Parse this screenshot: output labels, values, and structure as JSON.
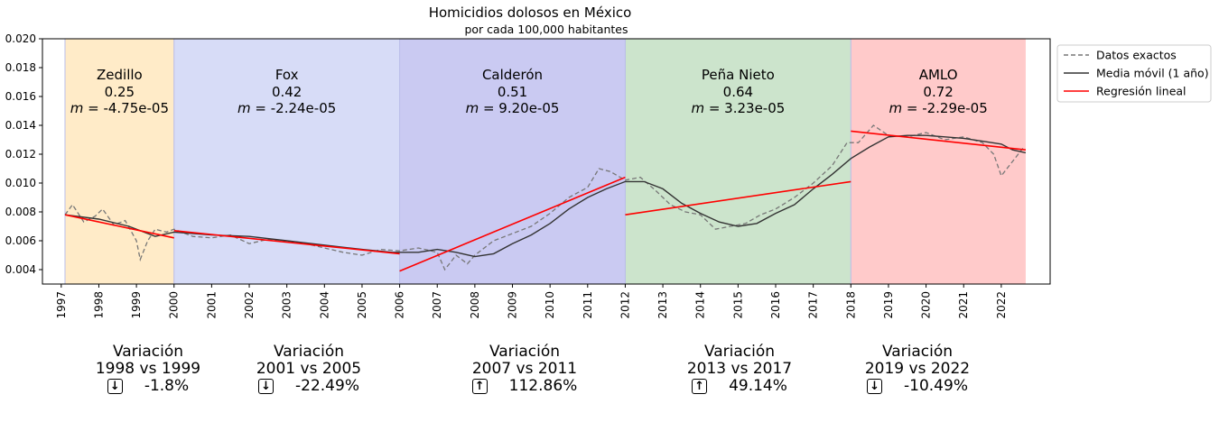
{
  "chart_data": {
    "type": "line",
    "title": "Homicidios dolosos en México",
    "subtitle": "por cada 100,000 habitantes",
    "xlim": [
      1996.5,
      2023.3
    ],
    "ylim": [
      0.003,
      0.02
    ],
    "yticks": [
      "0.020",
      "0.018",
      "0.016",
      "0.014",
      "0.012",
      "0.010",
      "0.008",
      "0.006",
      "0.004"
    ],
    "xticks": [
      "1997",
      "1998",
      "1999",
      "2000",
      "2001",
      "2002",
      "2003",
      "2004",
      "2005",
      "2006",
      "2007",
      "2008",
      "2009",
      "2010",
      "2011",
      "2012",
      "2013",
      "2014",
      "2015",
      "2016",
      "2017",
      "2018",
      "2019",
      "2020",
      "2021",
      "2022"
    ],
    "legend": {
      "position": "upper-right-outside",
      "entries": [
        "Datos exactos",
        "Media móvil (1 año)",
        "Regresión lineal"
      ]
    },
    "periods": [
      {
        "name": "Zedillo",
        "value": "0.25",
        "slope": "= -4.75e-05",
        "start": 1997.1,
        "end": 2000.0,
        "color": "#ffebc8"
      },
      {
        "name": "Fox",
        "value": "0.42",
        "slope": "= -2.24e-05",
        "start": 2000.0,
        "end": 2006.0,
        "color": "#d7dcf7"
      },
      {
        "name": "Calderón",
        "value": "0.51",
        "slope": "= 9.20e-05",
        "start": 2006.0,
        "end": 2012.0,
        "color": "#cacaf2"
      },
      {
        "name": "Peña Nieto",
        "value": "0.64",
        "slope": "= 3.23e-05",
        "start": 2012.0,
        "end": 2018.0,
        "color": "#cce4cc"
      },
      {
        "name": "AMLO",
        "value": "0.72",
        "slope": "= -2.29e-05",
        "start": 2018.0,
        "end": 2022.65,
        "color": "#ffcaca"
      }
    ],
    "slope_symbol": "m",
    "series": [
      {
        "name": "Datos exactos",
        "style": "dashed",
        "color": "#777777",
        "points": [
          [
            1997.1,
            0.0078
          ],
          [
            1997.3,
            0.0085
          ],
          [
            1997.6,
            0.0073
          ],
          [
            1997.9,
            0.0077
          ],
          [
            1998.1,
            0.0082
          ],
          [
            1998.4,
            0.0071
          ],
          [
            1998.7,
            0.0074
          ],
          [
            1999.0,
            0.006
          ],
          [
            1999.1,
            0.0047
          ],
          [
            1999.3,
            0.006
          ],
          [
            1999.5,
            0.0068
          ],
          [
            1999.8,
            0.0066
          ],
          [
            2000.0,
            0.0068
          ],
          [
            2000.5,
            0.0063
          ],
          [
            2001.0,
            0.0062
          ],
          [
            2001.5,
            0.0064
          ],
          [
            2002.0,
            0.0058
          ],
          [
            2002.5,
            0.0061
          ],
          [
            2003.0,
            0.006
          ],
          [
            2003.5,
            0.0058
          ],
          [
            2004.0,
            0.0055
          ],
          [
            2004.5,
            0.0052
          ],
          [
            2005.0,
            0.005
          ],
          [
            2005.5,
            0.0054
          ],
          [
            2006.0,
            0.0053
          ],
          [
            2006.5,
            0.0055
          ],
          [
            2007.0,
            0.0052
          ],
          [
            2007.2,
            0.004
          ],
          [
            2007.5,
            0.005
          ],
          [
            2007.8,
            0.0044
          ],
          [
            2008.0,
            0.005
          ],
          [
            2008.5,
            0.006
          ],
          [
            2009.0,
            0.0065
          ],
          [
            2009.5,
            0.007
          ],
          [
            2010.0,
            0.0079
          ],
          [
            2010.5,
            0.009
          ],
          [
            2011.0,
            0.0097
          ],
          [
            2011.3,
            0.011
          ],
          [
            2011.6,
            0.0108
          ],
          [
            2012.0,
            0.0102
          ],
          [
            2012.4,
            0.0104
          ],
          [
            2012.8,
            0.0095
          ],
          [
            2013.2,
            0.0085
          ],
          [
            2013.6,
            0.008
          ],
          [
            2014.0,
            0.0078
          ],
          [
            2014.4,
            0.0068
          ],
          [
            2014.8,
            0.007
          ],
          [
            2015.2,
            0.0072
          ],
          [
            2015.6,
            0.0078
          ],
          [
            2016.0,
            0.0082
          ],
          [
            2016.5,
            0.009
          ],
          [
            2017.0,
            0.01
          ],
          [
            2017.5,
            0.0112
          ],
          [
            2017.9,
            0.0128
          ],
          [
            2018.2,
            0.0128
          ],
          [
            2018.6,
            0.014
          ],
          [
            2019.0,
            0.0133
          ],
          [
            2019.5,
            0.0132
          ],
          [
            2020.0,
            0.0135
          ],
          [
            2020.5,
            0.013
          ],
          [
            2021.0,
            0.0132
          ],
          [
            2021.5,
            0.0128
          ],
          [
            2021.8,
            0.012
          ],
          [
            2022.0,
            0.0105
          ],
          [
            2022.3,
            0.0115
          ],
          [
            2022.6,
            0.0125
          ]
        ]
      },
      {
        "name": "Media móvil (1 año)",
        "style": "solid",
        "color": "#333333",
        "points": [
          [
            1997.1,
            0.0078
          ],
          [
            1998.0,
            0.0075
          ],
          [
            1998.8,
            0.007
          ],
          [
            1999.5,
            0.0063
          ],
          [
            2000.0,
            0.0066
          ],
          [
            2001.0,
            0.0064
          ],
          [
            2002.0,
            0.0063
          ],
          [
            2003.0,
            0.006
          ],
          [
            2004.0,
            0.0057
          ],
          [
            2005.0,
            0.0054
          ],
          [
            2005.8,
            0.0052
          ],
          [
            2006.5,
            0.0052
          ],
          [
            2007.0,
            0.0054
          ],
          [
            2007.5,
            0.0052
          ],
          [
            2008.0,
            0.0049
          ],
          [
            2008.5,
            0.0051
          ],
          [
            2009.0,
            0.0058
          ],
          [
            2009.5,
            0.0064
          ],
          [
            2010.0,
            0.0072
          ],
          [
            2010.5,
            0.0082
          ],
          [
            2011.0,
            0.009
          ],
          [
            2011.5,
            0.0096
          ],
          [
            2012.0,
            0.0101
          ],
          [
            2012.5,
            0.0101
          ],
          [
            2013.0,
            0.0096
          ],
          [
            2013.5,
            0.0086
          ],
          [
            2014.0,
            0.0079
          ],
          [
            2014.5,
            0.0073
          ],
          [
            2015.0,
            0.007
          ],
          [
            2015.5,
            0.0072
          ],
          [
            2016.0,
            0.0079
          ],
          [
            2016.5,
            0.0085
          ],
          [
            2017.0,
            0.0096
          ],
          [
            2017.5,
            0.0106
          ],
          [
            2018.0,
            0.0117
          ],
          [
            2018.5,
            0.0125
          ],
          [
            2019.0,
            0.0132
          ],
          [
            2019.5,
            0.0133
          ],
          [
            2020.0,
            0.0133
          ],
          [
            2020.5,
            0.0132
          ],
          [
            2021.0,
            0.0131
          ],
          [
            2021.5,
            0.0129
          ],
          [
            2022.0,
            0.0127
          ],
          [
            2022.3,
            0.0123
          ],
          [
            2022.65,
            0.0121
          ]
        ]
      }
    ],
    "regressions": [
      {
        "x": [
          1997.1,
          2000.0
        ],
        "y": [
          0.0078,
          0.0062
        ]
      },
      {
        "x": [
          2000.0,
          2006.0
        ],
        "y": [
          0.0067,
          0.0051
        ]
      },
      {
        "x": [
          2006.0,
          2012.0
        ],
        "y": [
          0.0039,
          0.0104
        ]
      },
      {
        "x": [
          2012.0,
          2018.0
        ],
        "y": [
          0.0078,
          0.0101
        ]
      },
      {
        "x": [
          2018.0,
          2022.65
        ],
        "y": [
          0.0136,
          0.0123
        ]
      }
    ]
  },
  "variations": [
    {
      "title": "Variación",
      "period": "1998 vs 1999",
      "direction": "down",
      "arrow": "↓",
      "value": "-1.8%"
    },
    {
      "title": "Variación",
      "period": "2001 vs 2005",
      "direction": "down",
      "arrow": "↓",
      "value": "-22.49%"
    },
    {
      "title": "Variación",
      "period": "2007 vs 2011",
      "direction": "up",
      "arrow": "↑",
      "value": "112.86%"
    },
    {
      "title": "Variación",
      "period": "2013 vs 2017",
      "direction": "up",
      "arrow": "↑",
      "value": "49.14%"
    },
    {
      "title": "Variación",
      "period": "2019 vs 2022",
      "direction": "down",
      "arrow": "↓",
      "value": "-10.49%"
    }
  ]
}
